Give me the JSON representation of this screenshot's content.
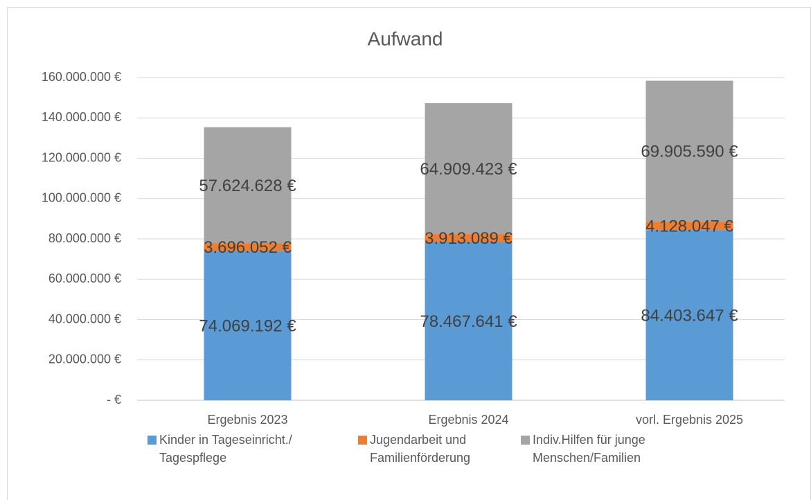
{
  "chart_data": {
    "type": "stacked_bar",
    "title": "Aufwand",
    "categories": [
      "Ergebnis 2023",
      "Ergebnis 2024",
      "vorl. Ergebnis 2025"
    ],
    "series": [
      {
        "name": "Kinder in Tageseinricht./ Tagespflege",
        "color": "#5b9bd5",
        "values": [
          74069192,
          78467641,
          84403647
        ],
        "value_labels": [
          "74.069.192 €",
          "78.467.641 €",
          "84.403.647 €"
        ]
      },
      {
        "name": "Jugendarbeit und Familienförderung",
        "color": "#ed7d31",
        "values": [
          3696052,
          3913089,
          4128047
        ],
        "value_labels": [
          "3.696.052 €",
          "3.913.089 €",
          "4.128.047 €"
        ]
      },
      {
        "name": "Indiv.Hilfen für junge Menschen/Familien",
        "color": "#a5a5a5",
        "values": [
          57624628,
          64909423,
          69905590
        ],
        "value_labels": [
          "57.624.628 €",
          "64.909.423 €",
          "69.905.590 €"
        ]
      }
    ],
    "ylim": [
      0,
      160000000
    ],
    "yticks": [
      {
        "value": 0,
        "label": "-  €"
      },
      {
        "value": 20000000,
        "label": "20.000.000 €"
      },
      {
        "value": 40000000,
        "label": "40.000.000 €"
      },
      {
        "value": 60000000,
        "label": "60.000.000 €"
      },
      {
        "value": 80000000,
        "label": "80.000.000 €"
      },
      {
        "value": 100000000,
        "label": "100.000.000 €"
      },
      {
        "value": 120000000,
        "label": "120.000.000 €"
      },
      {
        "value": 140000000,
        "label": "140.000.000 €"
      },
      {
        "value": 160000000,
        "label": "160.000.000 €"
      }
    ],
    "grid": true,
    "legend": "bottom"
  }
}
